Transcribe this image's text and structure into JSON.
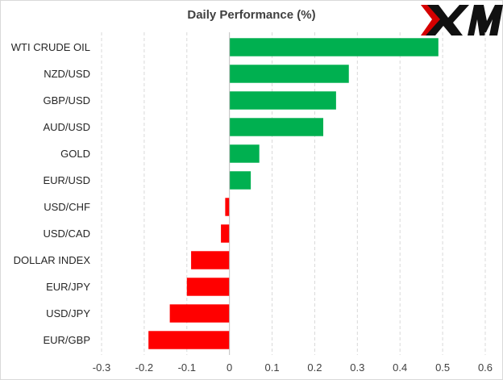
{
  "logo": {
    "text": "XM",
    "colors": {
      "x_shadow": "#d50000",
      "text": "#111111"
    }
  },
  "chart_data": {
    "type": "bar",
    "orientation": "horizontal",
    "title": "Daily Performance  (%)",
    "xlabel": "",
    "ylabel": "",
    "categories": [
      "WTI CRUDE OIL",
      "NZD/USD",
      "GBP/USD",
      "AUD/USD",
      "GOLD",
      "EUR/USD",
      "USD/CHF",
      "USD/CAD",
      "DOLLAR INDEX",
      "EUR/JPY",
      "USD/JPY",
      "EUR/GBP"
    ],
    "values": [
      0.49,
      0.28,
      0.25,
      0.22,
      0.07,
      0.05,
      -0.01,
      -0.02,
      -0.09,
      -0.1,
      -0.14,
      -0.19
    ],
    "xlim": [
      -0.3,
      0.6
    ],
    "xticks": [
      -0.3,
      -0.2,
      -0.1,
      0,
      0.1,
      0.2,
      0.3,
      0.4,
      0.5,
      0.6
    ],
    "xtick_labels": [
      "-0.3",
      "-0.2",
      "-0.1",
      "0",
      "0.1",
      "0.2",
      "0.3",
      "0.4",
      "0.5",
      "0.6"
    ],
    "grid": "vertical dashed",
    "legend": "none",
    "colors": {
      "positive": "#00b050",
      "negative": "#ff0000",
      "grid": "#d9d9d9",
      "axis": "#bfbfbf"
    }
  }
}
